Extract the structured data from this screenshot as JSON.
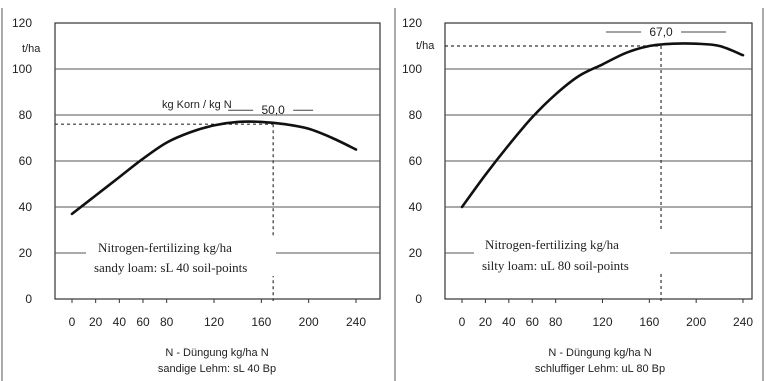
{
  "chart_data": [
    {
      "type": "line",
      "title": "kg Korn / kg N",
      "y_unit": "t/ha",
      "optimum_label": "50,0",
      "optimum": {
        "x": 170,
        "y": 76
      },
      "x_ticks": [
        "0",
        "20",
        "40",
        "60",
        "80",
        "120",
        "160",
        "200",
        "240"
      ],
      "y_ticks": [
        "0",
        "20",
        "40",
        "60",
        "80",
        "100",
        "120"
      ],
      "xlim": [
        0,
        240
      ],
      "ylim": [
        0,
        120
      ],
      "grid_y": true,
      "x": [
        0,
        20,
        40,
        60,
        80,
        100,
        120,
        140,
        160,
        180,
        200,
        220,
        240
      ],
      "y": [
        37,
        45,
        53,
        61,
        68,
        72.5,
        75.5,
        77,
        77,
        76,
        74,
        70,
        65
      ],
      "legend": [
        "Nitrogen-fertilizing kg/ha",
        "sandy loam: sL 40 soil-points"
      ],
      "xlabel": "N - Düngung kg/ha N",
      "xlabel2": "sandige Lehm:  sL 40 Bp"
    },
    {
      "type": "line",
      "y_unit": "t/ha",
      "optimum_label": "67,0",
      "optimum": {
        "x": 170,
        "y": 110
      },
      "x_ticks": [
        "0",
        "20",
        "40",
        "60",
        "80",
        "120",
        "160",
        "200",
        "240"
      ],
      "y_ticks": [
        "0",
        "20",
        "40",
        "60",
        "80",
        "100",
        "120"
      ],
      "xlim": [
        0,
        240
      ],
      "ylim": [
        0,
        120
      ],
      "grid_y": true,
      "x": [
        0,
        20,
        40,
        60,
        80,
        100,
        120,
        140,
        160,
        180,
        200,
        220,
        240
      ],
      "y": [
        40,
        54,
        67,
        79,
        89,
        97,
        102,
        107,
        110,
        111,
        111,
        110,
        106
      ],
      "legend": [
        "Nitrogen-fertilizing kg/ha",
        "silty loam: uL 80 soil-points"
      ],
      "xlabel": "N - Düngung kg/ha N",
      "xlabel2": "schluffiger Lehm:  uL 80 Bp"
    }
  ]
}
